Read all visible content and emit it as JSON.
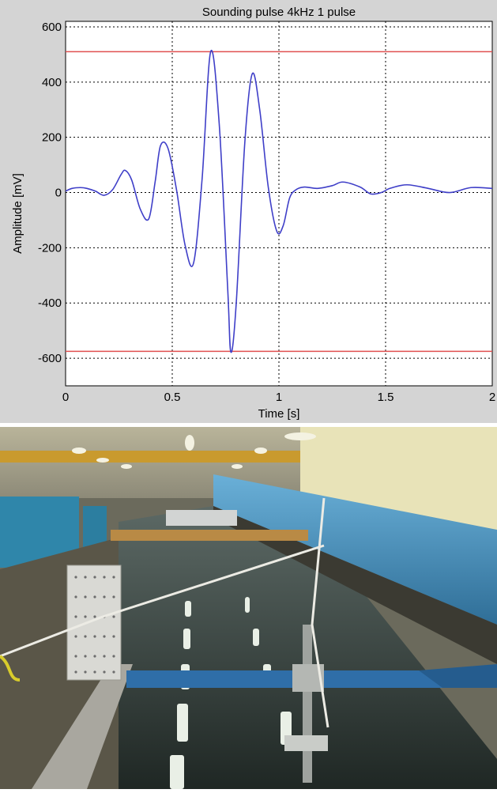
{
  "chart_data": {
    "type": "line",
    "title": "Sounding pulse 4kHz 1 pulse",
    "xlabel": "Time [s]",
    "ylabel": "Amplitude [mV]",
    "xlim": [
      0,
      2
    ],
    "ylim": [
      -700,
      620
    ],
    "xticks": [
      0,
      0.5,
      1,
      1.5,
      2
    ],
    "xtick_labels": [
      "0",
      "0.5",
      "1",
      "1.5",
      "2"
    ],
    "yticks": [
      -600,
      -400,
      -200,
      0,
      200,
      400,
      600
    ],
    "ytick_labels": [
      "-600",
      "-400",
      "-200",
      "0",
      "200",
      "400",
      "600"
    ],
    "grid": true,
    "legend": false,
    "series": [
      {
        "color": "#3f3fc8",
        "x": [
          0,
          0.03,
          0.07,
          0.1,
          0.14,
          0.18,
          0.22,
          0.26,
          0.28,
          0.31,
          0.35,
          0.39,
          0.42,
          0.445,
          0.48,
          0.52,
          0.56,
          0.6,
          0.64,
          0.68,
          0.72,
          0.76,
          0.775,
          0.8,
          0.84,
          0.875,
          0.91,
          0.95,
          0.99,
          1.02,
          1.05,
          1.08,
          1.12,
          1.18,
          1.25,
          1.3,
          1.38,
          1.43,
          1.48,
          1.52,
          1.6,
          1.7,
          1.8,
          1.9,
          2.0
        ],
        "y": [
          5,
          15,
          18,
          15,
          5,
          -10,
          10,
          65,
          80,
          45,
          -60,
          -95,
          40,
          170,
          160,
          10,
          -190,
          -255,
          50,
          510,
          250,
          -350,
          -578,
          -400,
          180,
          430,
          300,
          20,
          -140,
          -120,
          -20,
          10,
          20,
          15,
          25,
          38,
          20,
          -5,
          0,
          15,
          28,
          15,
          0,
          18,
          15
        ]
      }
    ],
    "reference_lines": [
      {
        "y": 510,
        "color": "#e05050"
      },
      {
        "y": -575,
        "color": "#e05050"
      }
    ]
  },
  "photo": {
    "description_icon": "experimental-tank-photo"
  }
}
